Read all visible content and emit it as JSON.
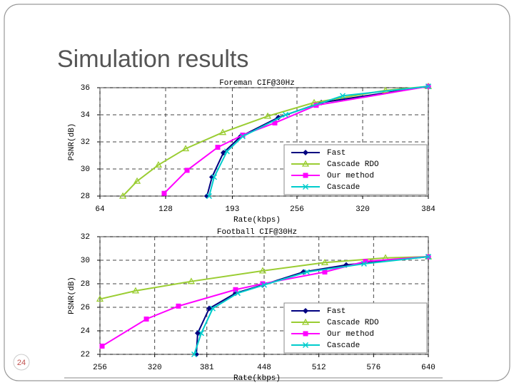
{
  "slide": {
    "title": "Simulation results",
    "page_number": "24"
  },
  "chart_data": [
    {
      "type": "line",
      "title": "Foreman CIF@30Hz",
      "x_label": "Rate(kbps)",
      "y_label": "PSNR(dB)",
      "xlim": [
        64,
        384
      ],
      "xticks": [
        64,
        128,
        193,
        256,
        320,
        384
      ],
      "ylim": [
        28,
        36
      ],
      "yticks": [
        28,
        30,
        32,
        34,
        36
      ],
      "grid": true,
      "legend": "lower right",
      "series": [
        {
          "name": "Fast",
          "color": "#000080",
          "marker": "diamond",
          "x": [
            168.3,
            173.2,
            184.3,
            201,
            237.9,
            279.7,
            384
          ],
          "values": [
            28,
            29.4,
            31.2,
            32.4,
            33.8,
            34.9,
            36.1
          ]
        },
        {
          "name": "Cascade RDO",
          "color": "#9acd32",
          "marker": "triangle",
          "x": [
            86.3,
            100.2,
            121,
            147.5,
            183.7,
            227.5,
            272.7,
            342.3,
            384
          ],
          "values": [
            28,
            29.1,
            30.3,
            31.5,
            32.7,
            33.9,
            34.9,
            35.8,
            36.1
          ]
        },
        {
          "name": "Our method",
          "color": "#ff00ff",
          "marker": "square",
          "x": [
            126.6,
            148.9,
            178.8,
            203.1,
            234.4,
            274.8,
            384
          ],
          "values": [
            28.2,
            29.9,
            31.6,
            32.5,
            33.4,
            34.7,
            36.1
          ]
        },
        {
          "name": "Cascade",
          "color": "#00cccc",
          "marker": "x",
          "x": [
            170.4,
            175.3,
            187.8,
            203.1,
            244.9,
            300.5,
            384
          ],
          "values": [
            28,
            29.4,
            31.3,
            32.4,
            34,
            35.4,
            36.1
          ]
        }
      ]
    },
    {
      "type": "line",
      "title": "Football CIF@30Hz",
      "x_label": "Rate(kbps)",
      "y_label": "PSNR(dB)",
      "xlim": [
        256,
        640
      ],
      "xticks": [
        256,
        320,
        381,
        448,
        512,
        576,
        640
      ],
      "ylim": [
        22,
        32
      ],
      "yticks": [
        22,
        24,
        26,
        28,
        30,
        32
      ],
      "grid": true,
      "legend": "lower right",
      "series": [
        {
          "name": "Fast",
          "color": "#000080",
          "marker": "diamond",
          "x": [
            368.7,
            370.3,
            383.7,
            414.6,
            446.3,
            493.9,
            544,
            640
          ],
          "values": [
            22,
            23.8,
            25.9,
            27.2,
            27.9,
            29,
            29.6,
            30.3
          ]
        },
        {
          "name": "Cascade RDO",
          "color": "#9acd32",
          "marker": "triangle",
          "x": [
            256,
            297.7,
            362.8,
            446.3,
            518.9,
            589.9,
            640
          ],
          "values": [
            26.7,
            27.4,
            28.2,
            29.1,
            29.8,
            30.2,
            30.3
          ]
        },
        {
          "name": "Our method",
          "color": "#ff00ff",
          "marker": "square",
          "x": [
            258.5,
            310.3,
            347.8,
            414.6,
            446.3,
            518.9,
            566.5,
            640
          ],
          "values": [
            22.7,
            25,
            26.1,
            27.5,
            28,
            29,
            29.9,
            30.3
          ]
        },
        {
          "name": "Cascade",
          "color": "#00cccc",
          "marker": "x",
          "x": [
            366.2,
            374.5,
            387.9,
            417.1,
            448,
            498.1,
            564.8,
            640
          ],
          "values": [
            22,
            23.8,
            25.9,
            27.2,
            27.9,
            29,
            29.7,
            30.3
          ]
        }
      ]
    }
  ]
}
